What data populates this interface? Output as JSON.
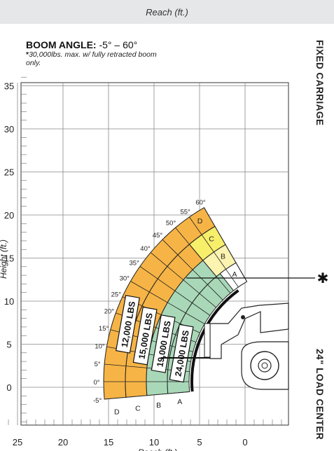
{
  "chart_data": {
    "type": "load-chart",
    "top_label": "Reach (ft.)",
    "ylabel": "Height (ft.)",
    "xlabel": "Reach (ft.)",
    "boom_angle_label": "BOOM ANGLE:",
    "boom_angle_range": "-5° – 60°",
    "footnote_mark": "*",
    "footnote": "30,000lbs. max. w/ fully retracted boom only.",
    "right_top": "FIXED CARRIAGE",
    "right_bottom": "24\" LOAD CENTER",
    "x_ticks": [
      "25",
      "20",
      "15",
      "10",
      "5",
      "0"
    ],
    "y_ticks": [
      "35",
      "30",
      "25",
      "20",
      "15",
      "10",
      "5",
      "0"
    ],
    "angles": [
      "60°",
      "55°",
      "50°",
      "45°",
      "40°",
      "35°",
      "30°",
      "25°",
      "20°",
      "15°",
      "10°",
      "5°",
      "0°",
      "-5°"
    ],
    "zones": [
      "A",
      "B",
      "C",
      "D"
    ],
    "capacities": [
      "12,000 LBS",
      "15,000 LBS",
      "19,000 LBS",
      "24,000 LBS"
    ],
    "asterisk": "✱",
    "colors": {
      "orange": "#f6b446",
      "green": "#a9d8b8",
      "yellow": "#f7ee6a",
      "paleyellow": "#fbf3b0",
      "boom": "#111111"
    }
  }
}
